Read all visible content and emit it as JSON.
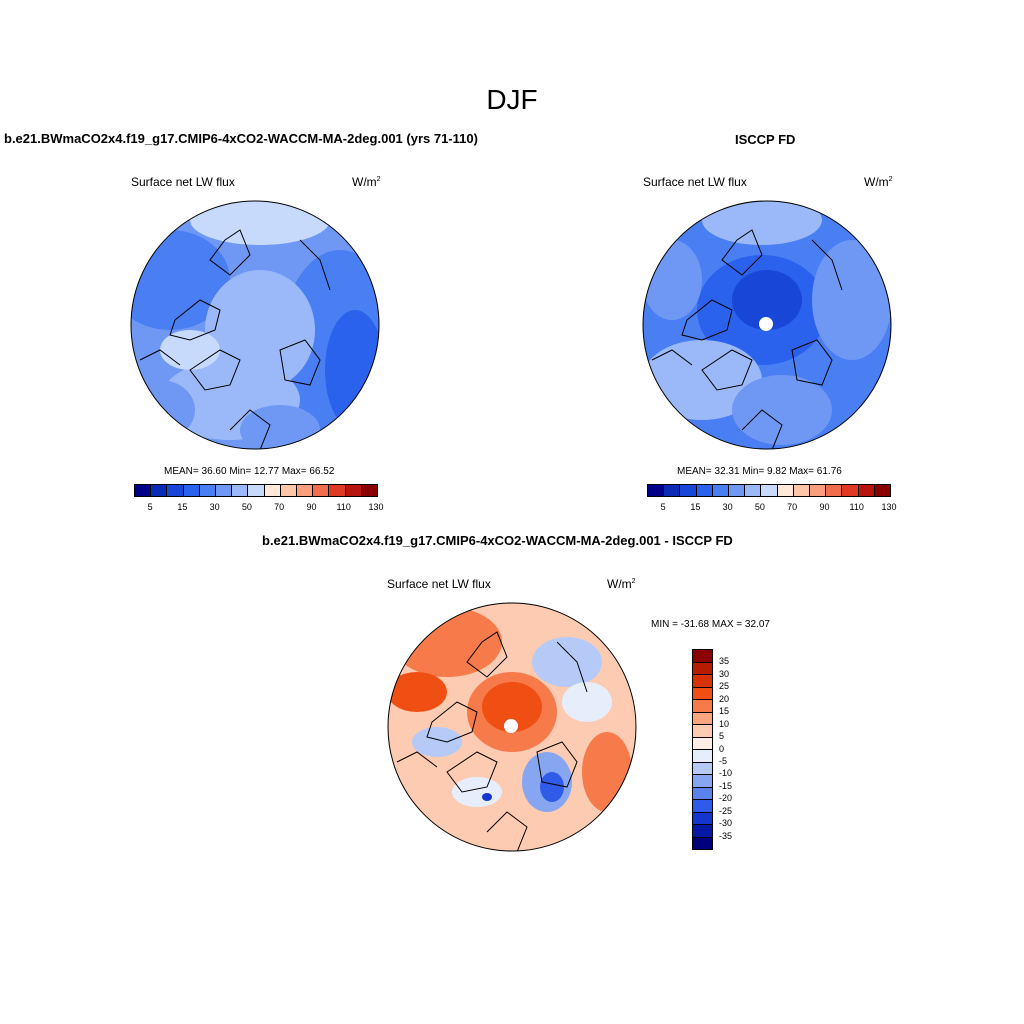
{
  "title": "DJF",
  "panels": [
    {
      "id": "model",
      "title": "b.e21.BWmaCO2x4.f19_g17.CMIP6-4xCO2-WACCM-MA-2deg.001 (yrs 71-110)",
      "variable": "Surface net LW flux",
      "unit_base": "W/m",
      "unit_exp": "2",
      "stats": "MEAN=  36.60  Min=  12.77  Max=  66.52"
    },
    {
      "id": "obs",
      "title": "ISCCP FD",
      "variable": "Surface net LW flux",
      "unit_base": "W/m",
      "unit_exp": "2",
      "stats": "MEAN=  32.31  Min=   9.82  Max=  61.76"
    },
    {
      "id": "diff",
      "title": "b.e21.BWmaCO2x4.f19_g17.CMIP6-4xCO2-WACCM-MA-2deg.001 - ISCCP FD",
      "variable": "Surface net LW flux",
      "unit_base": "W/m",
      "unit_exp": "2",
      "stats": "MIN = -31.68 MAX =  32.07"
    }
  ],
  "colorbar_abs": {
    "colors": [
      "#00008b",
      "#0a2bb5",
      "#1846d6",
      "#2a62ee",
      "#4a7ef3",
      "#6f98f5",
      "#9bb9f8",
      "#c7dafc",
      "#ffe7d9",
      "#fdc6a8",
      "#fb9e7b",
      "#f26d4c",
      "#e03a24",
      "#b8150e",
      "#8b0000"
    ],
    "labels": [
      "5",
      "15",
      "30",
      "50",
      "70",
      "90",
      "110",
      "130"
    ]
  },
  "colorbar_diff": {
    "colors": [
      "#8b0000",
      "#b61d00",
      "#d63200",
      "#f04f14",
      "#f77a4a",
      "#fba57f",
      "#fdcbb2",
      "#ffeee6",
      "#e6eefc",
      "#b6caf7",
      "#87a6f2",
      "#5a83ee",
      "#2f5be9",
      "#1535cf",
      "#0518a6",
      "#00007f"
    ],
    "labels": [
      "35",
      "30",
      "25",
      "20",
      "15",
      "10",
      "5",
      "0",
      "-5",
      "-10",
      "-15",
      "-20",
      "-25",
      "-30",
      "-35"
    ]
  }
}
